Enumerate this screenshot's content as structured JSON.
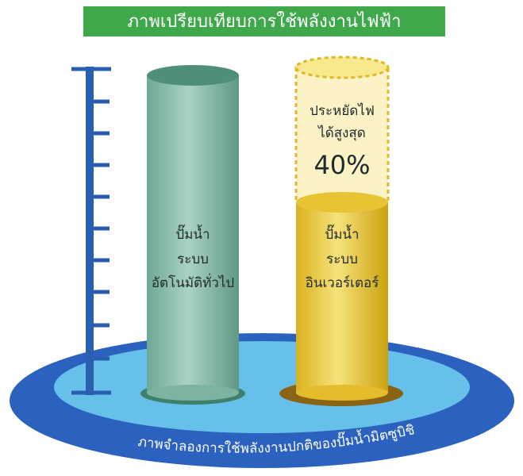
{
  "header": {
    "title": "ภาพเปรียบเทียบการใช้พลังงานไฟฟ้า"
  },
  "left_cylinder": {
    "lines": [
      "ปั๊มน้ำ",
      "ระบบ",
      "อัตโนมัติทั่วไป"
    ]
  },
  "right_cylinder": {
    "lines": [
      "ปั๊มน้ำ",
      "ระบบ",
      "อินเวอร์เตอร์"
    ]
  },
  "savings": {
    "lines": [
      "ประหยัดไฟ",
      "ได้สูงสุด"
    ],
    "amount": "40%"
  },
  "footer": {
    "caption": "ภาพจำลองการใช้พลังงานปกติของปั๊มน้ำมิตซูบิชิ"
  }
}
